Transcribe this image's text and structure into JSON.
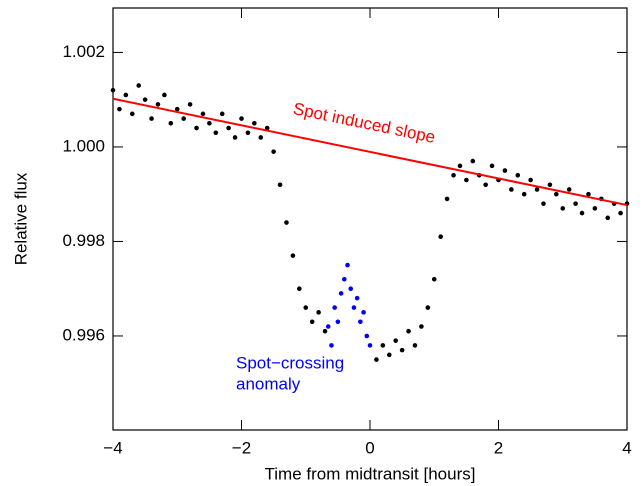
{
  "chart_data": {
    "type": "scatter",
    "xlabel": "Time from midtransit [hours]",
    "ylabel": "Relative flux",
    "xlim": [
      -4,
      4
    ],
    "ylim": [
      0.99401,
      1.00294
    ],
    "xticks": [
      {
        "value": -4,
        "label": "−4"
      },
      {
        "value": -2,
        "label": "−2"
      },
      0,
      2,
      4
    ],
    "yticks": [
      0.996,
      0.998,
      {
        "value": 1,
        "label": "1.000"
      },
      1.002
    ],
    "series": [
      {
        "type": "scatter",
        "color": "#000000",
        "x": [
          -4,
          -3.9,
          -3.8,
          -3.7,
          -3.6,
          -3.5,
          -3.4,
          -3.3,
          -3.2,
          -3.1,
          -3,
          -2.9,
          -2.8,
          -2.7,
          -2.6,
          -2.5,
          -2.4,
          -2.3,
          -2.2,
          -2.1,
          -2,
          -1.9,
          -1.8,
          -1.7,
          -1.6,
          -1.5,
          -1.4,
          -1.3,
          -1.2,
          -1.1,
          -1,
          -0.9,
          -0.8,
          -0.7,
          0.1,
          0.2,
          0.3,
          0.4,
          0.5,
          0.6,
          0.7,
          0.8,
          0.9,
          1,
          1.1,
          1.2,
          1.3,
          1.4,
          1.5,
          1.6,
          1.7,
          1.8,
          1.9,
          2,
          2.1,
          2.2,
          2.3,
          2.4,
          2.5,
          2.6,
          2.7,
          2.8,
          2.9,
          3,
          3.1,
          3.2,
          3.3,
          3.4,
          3.5,
          3.6,
          3.7,
          3.8,
          3.9,
          4
        ],
        "values": [
          1.0012,
          1.0008,
          1.0011,
          1.0007,
          1.0013,
          1.001,
          1.0006,
          1.0009,
          1.0011,
          1.0005,
          1.0008,
          1.0006,
          1.0009,
          1.0004,
          1.0007,
          1.0005,
          1.0003,
          1.0007,
          1.0004,
          1.0002,
          1.0006,
          1.0003,
          1.0005,
          1.0002,
          1.0004,
          0.9999,
          0.9992,
          0.9984,
          0.9977,
          0.997,
          0.9966,
          0.9963,
          0.9965,
          0.9961,
          0.9955,
          0.9958,
          0.9956,
          0.9959,
          0.9957,
          0.9961,
          0.9958,
          0.9962,
          0.9966,
          0.9972,
          0.9981,
          0.9989,
          0.9994,
          0.9996,
          0.9993,
          0.9997,
          0.9994,
          0.9992,
          0.9996,
          0.9993,
          0.9995,
          0.9991,
          0.9994,
          0.999,
          0.9993,
          0.9991,
          0.9988,
          0.9992,
          0.999,
          0.9987,
          0.9991,
          0.9988,
          0.9986,
          0.999,
          0.9987,
          0.9989,
          0.9985,
          0.9988,
          0.9986,
          0.9988
        ]
      },
      {
        "type": "scatter",
        "color": "#0000ff",
        "x": [
          -0.65,
          -0.6,
          -0.55,
          -0.5,
          -0.45,
          -0.4,
          -0.35,
          -0.3,
          -0.25,
          -0.2,
          -0.15,
          -0.1,
          -0.05,
          0
        ],
        "values": [
          0.9962,
          0.9958,
          0.9966,
          0.9963,
          0.9969,
          0.9972,
          0.9975,
          0.997,
          0.9966,
          0.9968,
          0.9963,
          0.9965,
          0.996,
          0.9958
        ]
      },
      {
        "type": "line",
        "color": "#ff0000",
        "x": [
          -4,
          4
        ],
        "values": [
          1.00102,
          0.99877
        ]
      }
    ],
    "annotations": [
      {
        "text": "Spot induced slope",
        "color": "#ff0000"
      },
      {
        "text": "Spot−crossing",
        "color": "#0000ff"
      },
      {
        "text": "anomaly",
        "color": "#0000ff"
      }
    ]
  }
}
